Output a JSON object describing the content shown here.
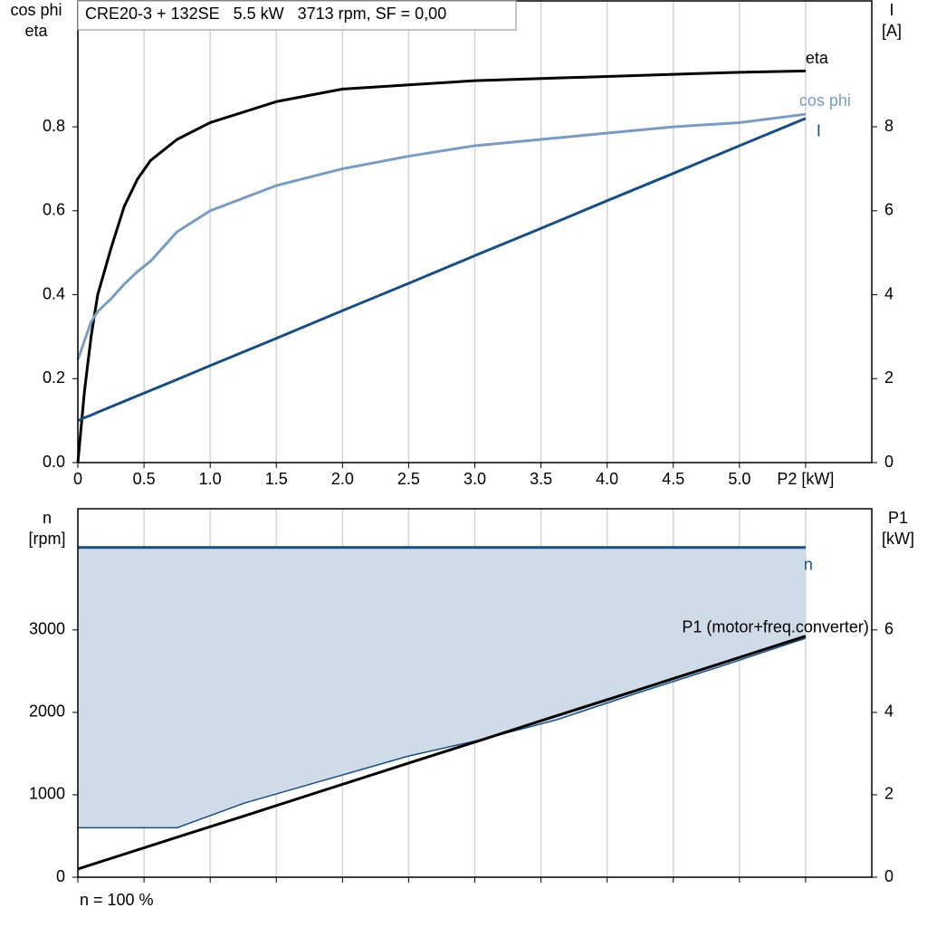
{
  "chart_data": [
    {
      "type": "line",
      "title": "CRE20-3 + 132SE   5.5 kW   3713 rpm, SF = 0,00",
      "ylabel": [
        "cos phi",
        "eta"
      ],
      "y2label": [
        "I",
        "[A]"
      ],
      "x": [
        0,
        0.05,
        0.1,
        0.15,
        0.25,
        0.35,
        0.45,
        0.55,
        0.75,
        1,
        1.5,
        2,
        2.5,
        3,
        3.5,
        4,
        4.5,
        5,
        5.5
      ],
      "series": [
        {
          "name": "eta",
          "color": "#000000",
          "values": [
            0,
            0.17,
            0.3,
            0.4,
            0.51,
            0.61,
            0.675,
            0.72,
            0.77,
            0.81,
            0.86,
            0.89,
            0.9,
            0.91,
            0.915,
            0.92,
            0.925,
            0.93,
            0.933
          ]
        },
        {
          "name": "cos phi",
          "color": "#7a9cc0",
          "values": [
            0.245,
            0.29,
            0.335,
            0.36,
            0.39,
            0.425,
            0.455,
            0.48,
            0.55,
            0.6,
            0.66,
            0.7,
            0.73,
            0.755,
            0.77,
            0.785,
            0.8,
            0.81,
            0.83
          ]
        },
        {
          "name": "I",
          "color": "#1a4e80",
          "axis": "y2",
          "values": [
            1.0,
            1.07,
            1.13,
            1.2,
            1.33,
            1.46,
            1.59,
            1.72,
            1.98,
            2.31,
            2.96,
            3.62,
            4.27,
            4.93,
            5.58,
            6.24,
            6.89,
            7.55,
            8.2
          ]
        }
      ],
      "xlim": [
        0,
        6
      ],
      "xticks": [
        {
          "value": 0,
          "label": "0"
        },
        0.5,
        {
          "value": 1,
          "label": "1.0"
        },
        1.5,
        {
          "value": 2,
          "label": "2.0"
        },
        2.5,
        {
          "value": 3,
          "label": "3.0"
        },
        3.5,
        {
          "value": 4,
          "label": "4.0"
        },
        4.5,
        {
          "value": 5,
          "label": "5.0"
        },
        {
          "value": 5.5,
          "label": "P2 [kW]"
        }
      ],
      "ylim": [
        0,
        1.1
      ],
      "yticks": [
        {
          "value": 0,
          "label": "0.0"
        },
        0.2,
        0.4,
        0.6,
        0.8
      ],
      "y2lim": [
        0,
        11
      ],
      "y2ticks": [
        0,
        2,
        4,
        6,
        8
      ],
      "grid": "x"
    },
    {
      "type": "range-line",
      "ylabel": [
        "n",
        "[rpm]"
      ],
      "y2label": [
        "P1",
        "[kW]"
      ],
      "note": "n = 100 %",
      "x": [
        0,
        0.75,
        1.26,
        2.5,
        3.05,
        3.62,
        4.2,
        4.9,
        5.5
      ],
      "series": [
        {
          "name": "n",
          "color": "#1a4e80",
          "fill": "#cfdbe7",
          "values": [
            4000,
            4000,
            4000,
            4000,
            4000,
            4000,
            4000,
            4000,
            4000
          ],
          "min_values": [
            600,
            600,
            900,
            1470,
            1670,
            1910,
            2220,
            2580,
            2900
          ]
        },
        {
          "name": "P1 (motor+freq.converter)",
          "color": "#000000",
          "axis": "y2",
          "values": [
            0.2,
            0.97,
            1.49,
            2.77,
            3.33,
            3.92,
            4.51,
            5.23,
            5.85
          ]
        }
      ],
      "xlim": [
        0,
        6
      ],
      "xticks": [
        0,
        0.5,
        1,
        1.5,
        2,
        2.5,
        3,
        3.5,
        4,
        4.5,
        5,
        5.5
      ],
      "xtick_labels": false,
      "ylim": [
        0,
        4470
      ],
      "yticks": [
        0,
        1000,
        2000,
        3000
      ],
      "y2lim": [
        0,
        8.94
      ],
      "y2ticks": [
        0,
        2,
        4,
        6
      ],
      "grid": "x"
    }
  ]
}
